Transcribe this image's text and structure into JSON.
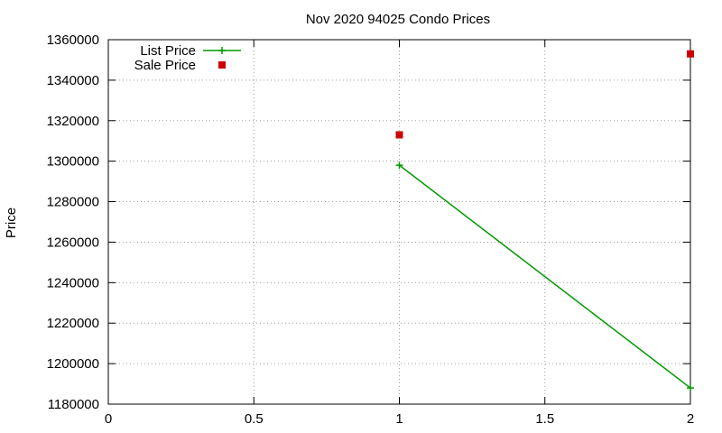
{
  "chart_data": {
    "type": "line",
    "title": "Nov 2020 94025 Condo Prices",
    "xlabel": "",
    "ylabel": "Price",
    "xlim": [
      0,
      2
    ],
    "ylim": [
      1180000,
      1360000
    ],
    "x_ticks": [
      "0",
      "0.5",
      "1",
      "1.5",
      "2"
    ],
    "y_ticks": [
      "1180000",
      "1200000",
      "1220000",
      "1240000",
      "1260000",
      "1280000",
      "1300000",
      "1320000",
      "1340000",
      "1360000"
    ],
    "grid": true,
    "legend_position": "top-left",
    "series": [
      {
        "name": "List Price",
        "style": "lines-points",
        "marker": "plus",
        "color": "#009900",
        "points": [
          [
            1,
            1298000
          ],
          [
            2,
            1188000
          ]
        ]
      },
      {
        "name": "Sale Price",
        "style": "points",
        "marker": "square",
        "color": "#cc0000",
        "points": [
          [
            1,
            1313000
          ],
          [
            2,
            1353000
          ]
        ]
      }
    ]
  }
}
